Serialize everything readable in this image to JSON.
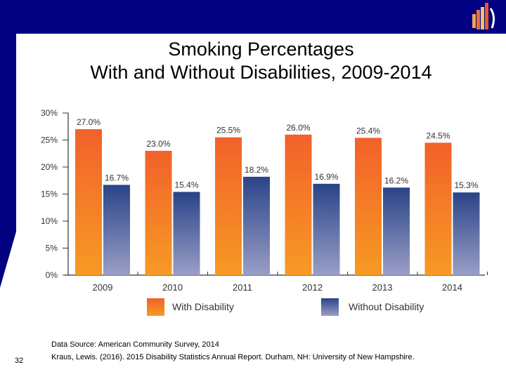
{
  "slide": {
    "title_line1": "Smoking Percentages",
    "title_line2": "With and Without Disabilities, 2009-2014",
    "source_line1": "Data Source: American Community Survey, 2014",
    "source_line2": "Kraus, Lewis. (2016). 2015 Disability Statistics Annual Report. Durham, NH: University of New Hampshire.",
    "page_number": "32",
    "colors": {
      "background": "#000080",
      "with_disability": "#F26A2A",
      "without_disability": "#2E4A8C"
    }
  },
  "chart_data": {
    "type": "bar",
    "categories": [
      "2009",
      "2010",
      "2011",
      "2012",
      "2013",
      "2014"
    ],
    "series": [
      {
        "name": "With Disability",
        "values": [
          27.0,
          23.0,
          25.5,
          26.0,
          25.4,
          24.5
        ],
        "labels": [
          "27.0%",
          "23.0%",
          "25.5%",
          "26.0%",
          "25.4%",
          "24.5%"
        ]
      },
      {
        "name": "Without Disability",
        "values": [
          16.7,
          15.4,
          18.2,
          16.9,
          16.2,
          15.3
        ],
        "labels": [
          "16.7%",
          "15.4%",
          "18.2%",
          "16.9%",
          "16.2%",
          "15.3%"
        ]
      }
    ],
    "yticks": [
      "0%",
      "5%",
      "10%",
      "15%",
      "20%",
      "25%",
      "30%"
    ],
    "ylim": [
      0,
      30
    ],
    "grid": false,
    "legend": "bottom"
  }
}
